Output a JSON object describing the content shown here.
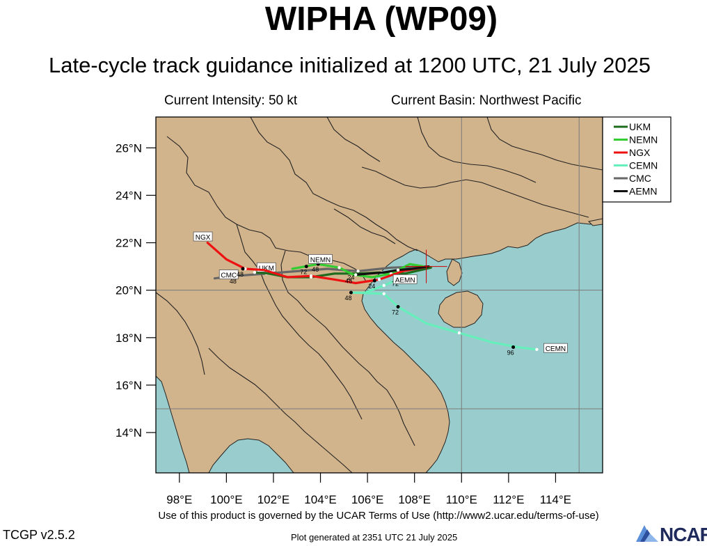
{
  "header": {
    "title": "WIPHA (WP09)",
    "subtitle": "Late-cycle track guidance initialized at 1200 UTC, 21 July 2025",
    "intensity": "Current Intensity: 50 kt",
    "basin": "Current Basin: Northwest Pacific"
  },
  "footer": {
    "terms": "Use of this product is governed by the UCAR Terms of Use (http://www2.ucar.edu/terms-of-use)",
    "version": "TCGP v2.5.2",
    "generated": "Plot generated at 2351 UTC   21 July 2025",
    "logo": "NCAR"
  },
  "colors": {
    "land": "#d1b38c",
    "ocean": "#99cccc",
    "border": "#222222",
    "grid": "#7a7a7a"
  },
  "map": {
    "lon_range": [
      97,
      116
    ],
    "lat_range": [
      12.3,
      27.3
    ],
    "lat_ticks": [
      {
        "value": 14,
        "label": "14°N"
      },
      {
        "value": 16,
        "label": "16°N"
      },
      {
        "value": 18,
        "label": "18°N"
      },
      {
        "value": 20,
        "label": "20°N"
      },
      {
        "value": 22,
        "label": "22°N"
      },
      {
        "value": 24,
        "label": "24°N"
      },
      {
        "value": 26,
        "label": "26°N"
      }
    ],
    "lon_ticks": [
      {
        "value": 98,
        "label": "98°E"
      },
      {
        "value": 100,
        "label": "100°E"
      },
      {
        "value": 102,
        "label": "102°E"
      },
      {
        "value": 104,
        "label": "104°E"
      },
      {
        "value": 106,
        "label": "106°E"
      },
      {
        "value": 108,
        "label": "108°E"
      },
      {
        "value": 110,
        "label": "110°E"
      },
      {
        "value": 112,
        "label": "112°E"
      },
      {
        "value": 114,
        "label": "114°E"
      }
    ],
    "grid_lons": [
      110,
      115
    ],
    "grid_lats": [
      15,
      20
    ],
    "current_position": [
      108.5,
      21.0
    ]
  },
  "legend": [
    {
      "name": "UKM",
      "color": "#1e6b1e"
    },
    {
      "name": "NEMN",
      "color": "#33cc33"
    },
    {
      "name": "NGX",
      "color": "#ee1111"
    },
    {
      "name": "CEMN",
      "color": "#66eebb"
    },
    {
      "name": "CMC",
      "color": "#666666"
    },
    {
      "name": "AEMN",
      "color": "#111111"
    }
  ],
  "tracks": [
    {
      "name": "CEMN",
      "color": "#66eebb",
      "points": [
        [
          108.5,
          21.0
        ],
        [
          107.6,
          20.6
        ],
        [
          106.7,
          20.2
        ],
        [
          105.9,
          19.9
        ],
        [
          105.3,
          19.9
        ],
        [
          106.7,
          19.85
        ],
        [
          107.3,
          19.3
        ],
        [
          108.5,
          18.6
        ],
        [
          109.9,
          18.2
        ],
        [
          111.3,
          17.8
        ],
        [
          112.4,
          17.6
        ],
        [
          113.2,
          17.5
        ]
      ],
      "hour_marks": [
        {
          "pt": [
            105.3,
            19.9
          ],
          "label": "48"
        },
        {
          "pt": [
            107.3,
            19.3
          ],
          "label": "72"
        },
        {
          "pt": [
            112.2,
            17.6
          ],
          "label": "96"
        }
      ],
      "tag": {
        "text": "CEMN",
        "at": [
          114.0,
          17.55
        ]
      }
    },
    {
      "name": "CMC",
      "color": "#666666",
      "points": [
        [
          108.5,
          21.0
        ],
        [
          107.0,
          20.95
        ],
        [
          105.6,
          20.8
        ],
        [
          104.3,
          20.9
        ],
        [
          103.0,
          20.8
        ],
        [
          101.7,
          20.7
        ],
        [
          100.4,
          20.6
        ],
        [
          99.5,
          20.5
        ]
      ],
      "hour_marks": [
        {
          "pt": [
            100.4,
            20.6
          ],
          "label": "48"
        }
      ],
      "tag": {
        "text": "CMC",
        "at": [
          100.1,
          20.65
        ]
      }
    },
    {
      "name": "UKM",
      "color": "#1e6b1e",
      "points": [
        [
          108.7,
          20.95
        ],
        [
          107.6,
          20.7
        ],
        [
          106.6,
          20.75
        ],
        [
          105.6,
          20.7
        ],
        [
          104.6,
          20.7
        ],
        [
          103.6,
          20.55
        ],
        [
          102.6,
          20.55
        ],
        [
          101.8,
          20.7
        ],
        [
          101.2,
          20.75
        ]
      ],
      "hour_marks": [],
      "tag": {
        "text": "UKM",
        "at": [
          101.7,
          20.95
        ]
      }
    },
    {
      "name": "NEMN",
      "color": "#33cc33",
      "points": [
        [
          108.4,
          21.0
        ],
        [
          107.8,
          21.1
        ],
        [
          107.0,
          20.7
        ],
        [
          106.2,
          20.55
        ],
        [
          105.4,
          20.65
        ],
        [
          104.8,
          20.95
        ],
        [
          103.9,
          21.1
        ],
        [
          102.8,
          20.9
        ]
      ],
      "hour_marks": [
        {
          "pt": [
            103.9,
            21.1
          ],
          "label": "48"
        },
        {
          "pt": [
            103.4,
            21.0
          ],
          "label": "72"
        }
      ],
      "tag": {
        "text": "NEMN",
        "at": [
          104.0,
          21.3
        ]
      }
    },
    {
      "name": "NGX",
      "color": "#ee1111",
      "points": [
        [
          108.6,
          21.0
        ],
        [
          107.5,
          20.8
        ],
        [
          106.5,
          20.45
        ],
        [
          105.5,
          20.3
        ],
        [
          104.6,
          20.45
        ],
        [
          103.6,
          20.6
        ],
        [
          102.6,
          20.55
        ],
        [
          101.6,
          20.85
        ],
        [
          100.8,
          20.9
        ],
        [
          100.0,
          21.3
        ],
        [
          99.2,
          22.0
        ]
      ],
      "hour_marks": [
        {
          "pt": [
            106.3,
            20.4
          ],
          "label": "24"
        },
        {
          "pt": [
            100.7,
            20.9
          ],
          "label": "48"
        }
      ],
      "tag": {
        "text": "NGX",
        "at": [
          99.0,
          22.25
        ]
      }
    },
    {
      "name": "AEMN",
      "color": "#111111",
      "points": [
        [
          108.6,
          21.0
        ],
        [
          107.9,
          20.9
        ],
        [
          107.3,
          20.85
        ],
        [
          106.7,
          20.75
        ],
        [
          106.1,
          20.7
        ],
        [
          105.5,
          20.65
        ]
      ],
      "hour_marks": [
        {
          "pt": [
            107.3,
            20.5
          ],
          "label": "72"
        }
      ],
      "tag": {
        "text": "AEMN",
        "at": [
          107.6,
          20.45
        ]
      }
    }
  ],
  "extra_hour_labels": [
    {
      "pt": [
        105.3,
        20.45
      ],
      "label": "24"
    },
    {
      "pt": [
        105.2,
        20.3
      ],
      "label": "48"
    }
  ]
}
